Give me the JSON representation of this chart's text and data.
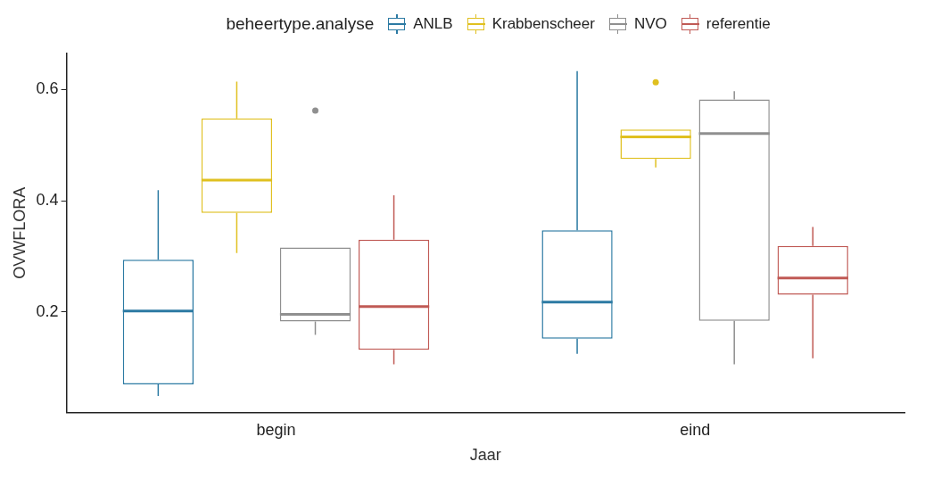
{
  "chart_data": {
    "type": "box",
    "categories": [
      "begin",
      "eind"
    ],
    "xlabel": "Jaar",
    "ylabel": "OVWFLORA",
    "legend_title": "beheertype.analyse",
    "legend": "top",
    "grid": false,
    "ylim": [
      0.019,
      0.665
    ],
    "yticks": [
      0.2,
      0.4,
      0.6
    ],
    "series": [
      {
        "name": "ANLB",
        "color": "#2c7aa3",
        "boxes": [
          {
            "low": 0.049,
            "q1": 0.07,
            "median": 0.202,
            "q3": 0.294,
            "high": 0.419
          },
          {
            "low": 0.125,
            "q1": 0.152,
            "median": 0.218,
            "q3": 0.347,
            "high": 0.633
          }
        ]
      },
      {
        "name": "Krabbenscheer",
        "color": "#e0c020",
        "boxes": [
          {
            "low": 0.306,
            "q1": 0.378,
            "median": 0.437,
            "q3": 0.548,
            "high": 0.614
          },
          {
            "low": 0.46,
            "q1": 0.475,
            "median": 0.515,
            "q3": 0.528,
            "high": 0.528,
            "outliers": [
              0.613
            ]
          }
        ]
      },
      {
        "name": "NVO",
        "color": "#8f8f8f",
        "boxes": [
          {
            "low": 0.159,
            "q1": 0.183,
            "median": 0.196,
            "q3": 0.316,
            "high": 0.316,
            "outliers": [
              0.562
            ]
          },
          {
            "low": 0.106,
            "q1": 0.184,
            "median": 0.521,
            "q3": 0.582,
            "high": 0.597
          }
        ]
      },
      {
        "name": "referentie",
        "color": "#c05a55",
        "boxes": [
          {
            "low": 0.106,
            "q1": 0.132,
            "median": 0.21,
            "q3": 0.33,
            "high": 0.41
          },
          {
            "low": 0.117,
            "q1": 0.231,
            "median": 0.261,
            "q3": 0.319,
            "high": 0.353
          }
        ]
      }
    ]
  }
}
